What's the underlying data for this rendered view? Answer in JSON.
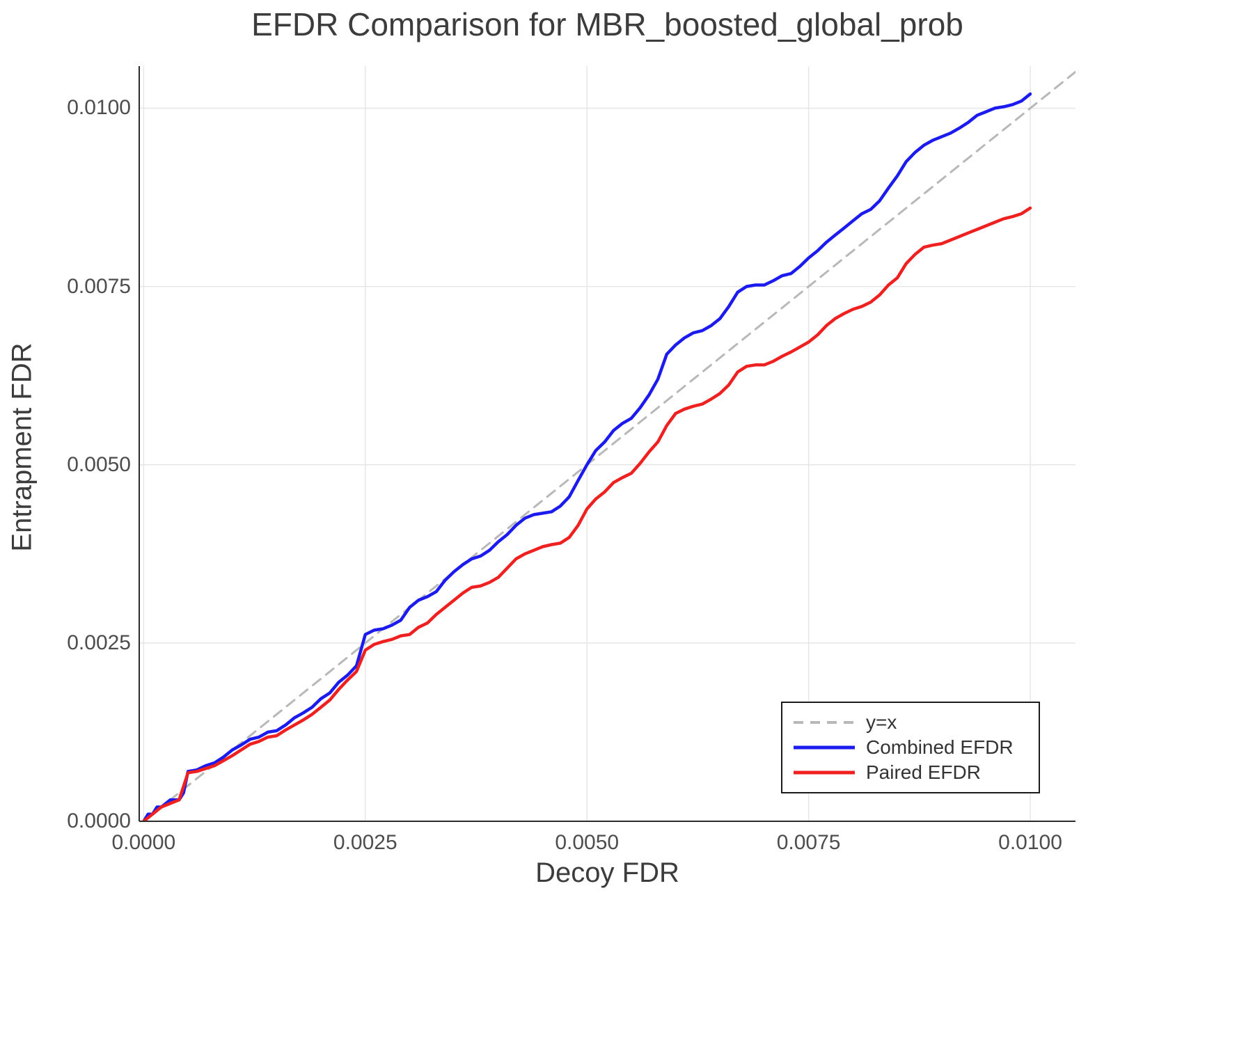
{
  "chart_data": {
    "type": "line",
    "title": "EFDR Comparison for MBR_boosted_global_prob",
    "xlabel": "Decoy FDR",
    "ylabel": "Entrapment FDR",
    "xlim": [
      -5e-05,
      0.01051
    ],
    "ylim": [
      0,
      0.01059
    ],
    "grid": true,
    "grid_color": "#e6e6e6",
    "axis_color": "#2b2b2b",
    "xticks": {
      "values": [
        0.0,
        0.0025,
        0.005,
        0.0075,
        0.01
      ],
      "labels": [
        "0.0000",
        "0.0025",
        "0.0050",
        "0.0075",
        "0.0100"
      ]
    },
    "yticks": {
      "values": [
        0.0,
        0.0025,
        0.005,
        0.0075,
        0.01
      ],
      "labels": [
        "0.0000",
        "0.0025",
        "0.0050",
        "0.0075",
        "0.0100"
      ]
    },
    "legend": {
      "position": "bottom-right",
      "entries": [
        {
          "label": "y=x",
          "color": "#b8b8b8",
          "dash": true
        },
        {
          "label": "Combined EFDR",
          "color": "#1b1bef",
          "dash": false
        },
        {
          "label": "Paired EFDR",
          "color": "#ef2020",
          "dash": false
        }
      ]
    },
    "reference_line": {
      "name": "y=x",
      "from": [
        0,
        0
      ],
      "to": [
        0.0106,
        0.0106
      ],
      "color": "#b8b8b8"
    },
    "series": [
      {
        "name": "Combined EFDR",
        "color": "#1b1bef",
        "points": [
          [
            0.0,
            0.0
          ],
          [
            5e-05,
            0.0001
          ],
          [
            0.0001,
            0.0001
          ],
          [
            0.00015,
            0.0002
          ],
          [
            0.0002,
            0.0002
          ],
          [
            0.0003,
            0.0003
          ],
          [
            0.0004,
            0.0003
          ],
          [
            0.00045,
            0.0004
          ],
          [
            0.0005,
            0.0007
          ],
          [
            0.0006,
            0.00072
          ],
          [
            0.0007,
            0.00078
          ],
          [
            0.0008,
            0.00082
          ],
          [
            0.0009,
            0.0009
          ],
          [
            0.001,
            0.001
          ],
          [
            0.0011,
            0.00107
          ],
          [
            0.0012,
            0.00115
          ],
          [
            0.0013,
            0.00118
          ],
          [
            0.0014,
            0.00125
          ],
          [
            0.0015,
            0.00127
          ],
          [
            0.0016,
            0.00135
          ],
          [
            0.0017,
            0.00145
          ],
          [
            0.0018,
            0.00152
          ],
          [
            0.0019,
            0.0016
          ],
          [
            0.002,
            0.00172
          ],
          [
            0.0021,
            0.0018
          ],
          [
            0.0022,
            0.00195
          ],
          [
            0.0023,
            0.00205
          ],
          [
            0.0024,
            0.00218
          ],
          [
            0.0025,
            0.00262
          ],
          [
            0.0026,
            0.00268
          ],
          [
            0.0027,
            0.0027
          ],
          [
            0.0028,
            0.00275
          ],
          [
            0.0029,
            0.00282
          ],
          [
            0.003,
            0.003
          ],
          [
            0.0031,
            0.0031
          ],
          [
            0.0032,
            0.00315
          ],
          [
            0.0033,
            0.00322
          ],
          [
            0.0034,
            0.00338
          ],
          [
            0.0035,
            0.0035
          ],
          [
            0.0036,
            0.0036
          ],
          [
            0.0037,
            0.00368
          ],
          [
            0.0038,
            0.00372
          ],
          [
            0.0039,
            0.0038
          ],
          [
            0.004,
            0.00392
          ],
          [
            0.0041,
            0.00402
          ],
          [
            0.0042,
            0.00415
          ],
          [
            0.0043,
            0.00425
          ],
          [
            0.0044,
            0.0043
          ],
          [
            0.0045,
            0.00432
          ],
          [
            0.0046,
            0.00434
          ],
          [
            0.0047,
            0.00442
          ],
          [
            0.0048,
            0.00455
          ],
          [
            0.0049,
            0.00478
          ],
          [
            0.005,
            0.005
          ],
          [
            0.0051,
            0.0052
          ],
          [
            0.0052,
            0.00532
          ],
          [
            0.0053,
            0.00548
          ],
          [
            0.0054,
            0.00558
          ],
          [
            0.0055,
            0.00565
          ],
          [
            0.0056,
            0.0058
          ],
          [
            0.0057,
            0.00598
          ],
          [
            0.0058,
            0.0062
          ],
          [
            0.0059,
            0.00655
          ],
          [
            0.006,
            0.00668
          ],
          [
            0.0061,
            0.00678
          ],
          [
            0.0062,
            0.00685
          ],
          [
            0.0063,
            0.00688
          ],
          [
            0.0064,
            0.00695
          ],
          [
            0.0065,
            0.00705
          ],
          [
            0.0066,
            0.00722
          ],
          [
            0.0067,
            0.00742
          ],
          [
            0.0068,
            0.0075
          ],
          [
            0.0069,
            0.00752
          ],
          [
            0.007,
            0.00752
          ],
          [
            0.0071,
            0.00758
          ],
          [
            0.0072,
            0.00765
          ],
          [
            0.0073,
            0.00768
          ],
          [
            0.0074,
            0.00778
          ],
          [
            0.0075,
            0.0079
          ],
          [
            0.0076,
            0.008
          ],
          [
            0.0077,
            0.00812
          ],
          [
            0.0078,
            0.00822
          ],
          [
            0.0079,
            0.00832
          ],
          [
            0.008,
            0.00842
          ],
          [
            0.0081,
            0.00852
          ],
          [
            0.0082,
            0.00858
          ],
          [
            0.0083,
            0.0087
          ],
          [
            0.0084,
            0.00888
          ],
          [
            0.0085,
            0.00905
          ],
          [
            0.0086,
            0.00925
          ],
          [
            0.0087,
            0.00938
          ],
          [
            0.0088,
            0.00948
          ],
          [
            0.0089,
            0.00955
          ],
          [
            0.009,
            0.0096
          ],
          [
            0.0091,
            0.00965
          ],
          [
            0.0092,
            0.00972
          ],
          [
            0.0093,
            0.0098
          ],
          [
            0.0094,
            0.0099
          ],
          [
            0.0095,
            0.00995
          ],
          [
            0.0096,
            0.01
          ],
          [
            0.0097,
            0.01002
          ],
          [
            0.0098,
            0.01005
          ],
          [
            0.0099,
            0.0101
          ],
          [
            0.01,
            0.0102
          ]
        ]
      },
      {
        "name": "Paired EFDR",
        "color": "#ef2020",
        "points": [
          [
            0.0,
            0.0
          ],
          [
            0.0001,
            0.0001
          ],
          [
            0.0002,
            0.0002
          ],
          [
            0.0003,
            0.00025
          ],
          [
            0.0004,
            0.0003
          ],
          [
            0.0005,
            0.00068
          ],
          [
            0.0006,
            0.0007
          ],
          [
            0.0007,
            0.00074
          ],
          [
            0.0008,
            0.00078
          ],
          [
            0.0009,
            0.00085
          ],
          [
            0.001,
            0.00092
          ],
          [
            0.0011,
            0.001
          ],
          [
            0.0012,
            0.00108
          ],
          [
            0.0013,
            0.00112
          ],
          [
            0.0014,
            0.00118
          ],
          [
            0.0015,
            0.0012
          ],
          [
            0.0016,
            0.00128
          ],
          [
            0.0017,
            0.00135
          ],
          [
            0.0018,
            0.00142
          ],
          [
            0.0019,
            0.0015
          ],
          [
            0.002,
            0.0016
          ],
          [
            0.0021,
            0.0017
          ],
          [
            0.0022,
            0.00185
          ],
          [
            0.0023,
            0.00198
          ],
          [
            0.0024,
            0.0021
          ],
          [
            0.0025,
            0.0024
          ],
          [
            0.0026,
            0.00248
          ],
          [
            0.0027,
            0.00252
          ],
          [
            0.0028,
            0.00255
          ],
          [
            0.0029,
            0.0026
          ],
          [
            0.003,
            0.00262
          ],
          [
            0.0031,
            0.00272
          ],
          [
            0.0032,
            0.00278
          ],
          [
            0.0033,
            0.0029
          ],
          [
            0.0034,
            0.003
          ],
          [
            0.0035,
            0.0031
          ],
          [
            0.0036,
            0.0032
          ],
          [
            0.0037,
            0.00328
          ],
          [
            0.0038,
            0.0033
          ],
          [
            0.0039,
            0.00335
          ],
          [
            0.004,
            0.00342
          ],
          [
            0.0041,
            0.00355
          ],
          [
            0.0042,
            0.00368
          ],
          [
            0.0043,
            0.00375
          ],
          [
            0.0044,
            0.0038
          ],
          [
            0.0045,
            0.00385
          ],
          [
            0.0046,
            0.00388
          ],
          [
            0.0047,
            0.0039
          ],
          [
            0.0048,
            0.00398
          ],
          [
            0.0049,
            0.00415
          ],
          [
            0.005,
            0.00438
          ],
          [
            0.0051,
            0.00452
          ],
          [
            0.0052,
            0.00462
          ],
          [
            0.0053,
            0.00475
          ],
          [
            0.0054,
            0.00482
          ],
          [
            0.0055,
            0.00488
          ],
          [
            0.0056,
            0.00502
          ],
          [
            0.0057,
            0.00518
          ],
          [
            0.0058,
            0.00532
          ],
          [
            0.0059,
            0.00555
          ],
          [
            0.006,
            0.00572
          ],
          [
            0.0061,
            0.00578
          ],
          [
            0.0062,
            0.00582
          ],
          [
            0.0063,
            0.00585
          ],
          [
            0.0064,
            0.00592
          ],
          [
            0.0065,
            0.006
          ],
          [
            0.0066,
            0.00612
          ],
          [
            0.0067,
            0.0063
          ],
          [
            0.0068,
            0.00638
          ],
          [
            0.0069,
            0.0064
          ],
          [
            0.007,
            0.0064
          ],
          [
            0.0071,
            0.00645
          ],
          [
            0.0072,
            0.00652
          ],
          [
            0.0073,
            0.00658
          ],
          [
            0.0074,
            0.00665
          ],
          [
            0.0075,
            0.00672
          ],
          [
            0.0076,
            0.00682
          ],
          [
            0.0077,
            0.00695
          ],
          [
            0.0078,
            0.00705
          ],
          [
            0.0079,
            0.00712
          ],
          [
            0.008,
            0.00718
          ],
          [
            0.0081,
            0.00722
          ],
          [
            0.0082,
            0.00728
          ],
          [
            0.0083,
            0.00738
          ],
          [
            0.0084,
            0.00752
          ],
          [
            0.0085,
            0.00762
          ],
          [
            0.0086,
            0.00782
          ],
          [
            0.0087,
            0.00795
          ],
          [
            0.0088,
            0.00805
          ],
          [
            0.0089,
            0.00808
          ],
          [
            0.009,
            0.0081
          ],
          [
            0.0091,
            0.00815
          ],
          [
            0.0092,
            0.0082
          ],
          [
            0.0093,
            0.00825
          ],
          [
            0.0094,
            0.0083
          ],
          [
            0.0095,
            0.00835
          ],
          [
            0.0096,
            0.0084
          ],
          [
            0.0097,
            0.00845
          ],
          [
            0.0098,
            0.00848
          ],
          [
            0.0099,
            0.00852
          ],
          [
            0.01,
            0.0086
          ]
        ]
      }
    ]
  }
}
